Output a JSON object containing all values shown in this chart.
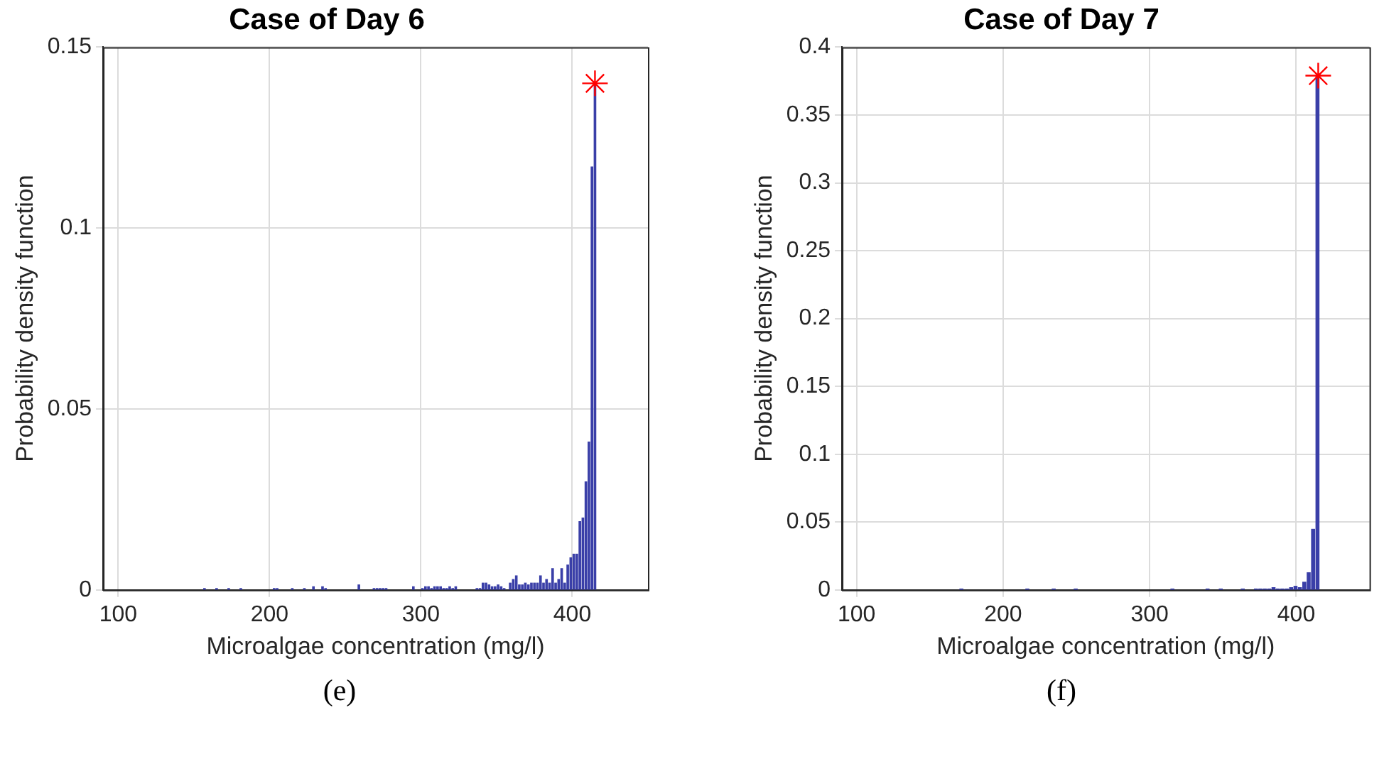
{
  "chart_data": [
    {
      "type": "histogram",
      "title": "Case of Day 6",
      "xlabel": "Microalgae concentration (mg/l)",
      "ylabel": "Probability density function",
      "annotations": [
        "(e)"
      ],
      "bins": [
        156,
        158,
        164,
        166,
        172,
        174,
        180,
        182,
        202,
        204,
        206,
        214,
        216,
        222,
        224,
        228,
        230,
        234,
        236,
        238,
        258,
        260,
        268,
        270,
        272,
        274,
        276,
        278,
        294,
        296,
        300,
        302,
        304,
        306,
        308,
        310,
        312,
        314,
        316,
        318,
        320,
        322,
        324,
        336,
        338,
        340,
        342,
        344,
        346,
        348,
        350,
        352,
        354,
        356,
        358,
        360,
        362,
        364,
        366,
        368,
        370,
        372,
        374,
        376,
        378,
        380,
        382,
        384,
        386,
        388,
        390,
        392,
        394,
        396,
        398,
        400,
        402,
        404,
        406,
        408,
        410,
        412,
        414,
        416
      ],
      "values": [
        0.0005,
        0,
        0.0005,
        0,
        0.0005,
        0,
        0.0005,
        0,
        0.0005,
        0.0005,
        0,
        0.0005,
        0,
        0.0005,
        0,
        0.001,
        0,
        0.001,
        0.0005,
        0,
        0.0015,
        0,
        0.0005,
        0.0005,
        0.0005,
        0.0005,
        0.0005,
        0,
        0.001,
        0,
        0.0005,
        0.001,
        0.001,
        0.0005,
        0.001,
        0.001,
        0.001,
        0.0005,
        0.0005,
        0.001,
        0.0005,
        0.001,
        0,
        0.0005,
        0.0005,
        0.002,
        0.002,
        0.0015,
        0.001,
        0.001,
        0.0015,
        0.001,
        0.0005,
        0,
        0.002,
        0.003,
        0.004,
        0.0015,
        0.0015,
        0.002,
        0.0015,
        0.002,
        0.002,
        0.002,
        0.004,
        0.002,
        0.003,
        0.002,
        0.006,
        0.002,
        0.003,
        0.006,
        0.002,
        0.007,
        0.009,
        0.01,
        0.01,
        0.019,
        0.02,
        0.03,
        0.041,
        0.117,
        0.14
      ],
      "color": "#3a3fa8",
      "series": [
        {
          "type": "scatter",
          "x": [
            415
          ],
          "values": [
            0.14
          ],
          "color": "#ff0000",
          "marker": "cross"
        }
      ],
      "xlim": [
        90,
        450
      ],
      "xticks": [
        100,
        200,
        300,
        400
      ],
      "ylim": [
        0,
        0.15
      ],
      "yticks": [
        0,
        0.05,
        0.1,
        0.15
      ],
      "grid": true
    },
    {
      "type": "histogram",
      "title": "Case of Day 7",
      "xlabel": "Microalgae concentration (mg/l)",
      "ylabel": "Probability density function",
      "annotations": [
        "(f)"
      ],
      "bins": [
        170,
        173,
        215,
        218,
        233,
        236,
        248,
        251,
        314,
        317,
        338,
        341,
        347,
        350,
        362,
        365,
        371,
        374,
        377,
        380,
        383,
        386,
        389,
        392,
        395,
        398,
        401,
        404,
        407,
        410,
        413,
        416
      ],
      "values": [
        0.001,
        0,
        0.001,
        0,
        0.001,
        0,
        0.001,
        0,
        0.001,
        0,
        0.001,
        0,
        0.001,
        0,
        0.001,
        0,
        0.001,
        0.001,
        0.001,
        0.001,
        0.002,
        0.001,
        0.001,
        0.001,
        0.002,
        0.003,
        0.002,
        0.006,
        0.013,
        0.045,
        0.379
      ],
      "color": "#3a3fa8",
      "series": [
        {
          "type": "scatter",
          "x": [
            415
          ],
          "values": [
            0.379
          ],
          "color": "#ff0000",
          "marker": "cross"
        }
      ],
      "xlim": [
        90,
        450
      ],
      "xticks": [
        100,
        200,
        300,
        400
      ],
      "ylim": [
        0,
        0.4
      ],
      "yticks": [
        0,
        0.05,
        0.1,
        0.15,
        0.2,
        0.25,
        0.3,
        0.35,
        0.4
      ],
      "grid": true
    }
  ]
}
